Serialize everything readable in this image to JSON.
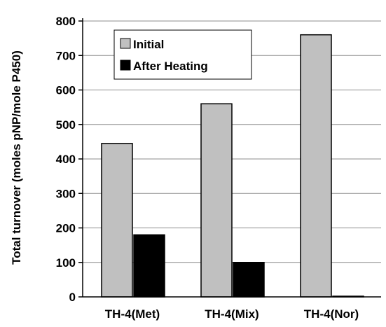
{
  "chart_data": {
    "type": "bar",
    "title": "",
    "xlabel": "",
    "ylabel": "Total turnover (moles pNP/mole P450)",
    "categories": [
      "TH-4(Met)",
      "TH-4(Mix)",
      "TH-4(Nor)"
    ],
    "series": [
      {
        "name": "Initial",
        "values": [
          445,
          560,
          760
        ],
        "color": "#c0c0c0"
      },
      {
        "name": "After Heating",
        "values": [
          180,
          100,
          2
        ],
        "color": "#000000"
      }
    ],
    "ylim": [
      0,
      800
    ],
    "yticks": [
      "0",
      "100",
      "200",
      "300",
      "400",
      "500",
      "600",
      "700",
      "800"
    ],
    "grid": true,
    "legend_position": "top-left"
  }
}
